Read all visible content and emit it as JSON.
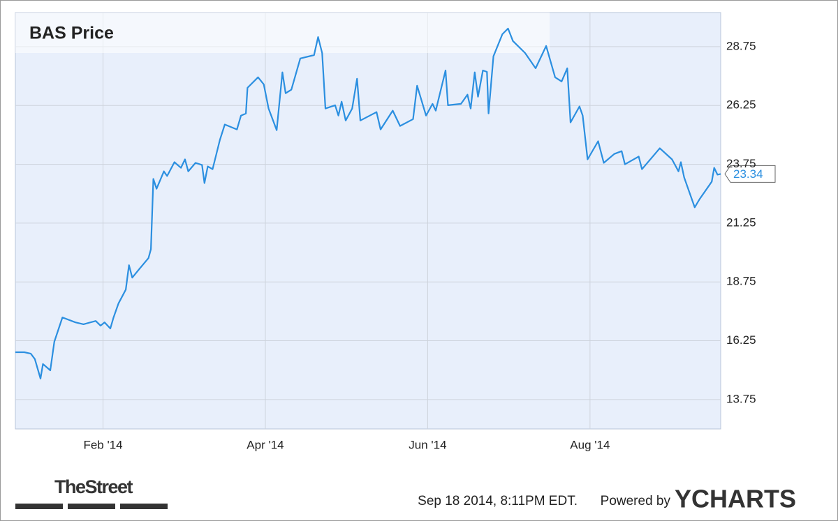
{
  "chart_data": {
    "type": "line",
    "title": "BAS Price",
    "x": [
      -0.08,
      0.03,
      0.11,
      0.16,
      0.23,
      0.26,
      0.35,
      0.4,
      0.5,
      0.66,
      0.76,
      0.91,
      0.97,
      1.02,
      1.09,
      1.13,
      1.19,
      1.28,
      1.32,
      1.36,
      1.45,
      1.56,
      1.59,
      1.62,
      1.66,
      1.75,
      1.79,
      1.88,
      1.96,
      2.01,
      2.05,
      2.14,
      2.22,
      2.25,
      2.29,
      2.35,
      2.44,
      2.5,
      2.65,
      2.7,
      2.76,
      2.78,
      2.91,
      2.98,
      3.04,
      3.14,
      3.21,
      3.25,
      3.32,
      3.43,
      3.6,
      3.65,
      3.7,
      3.74,
      3.86,
      3.9,
      3.94,
      3.99,
      4.07,
      4.13,
      4.17,
      4.37,
      4.42,
      4.57,
      4.66,
      4.82,
      4.87,
      4.98,
      5.06,
      5.1,
      5.22,
      5.25,
      5.41,
      5.49,
      5.53,
      5.58,
      5.62,
      5.68,
      5.73,
      5.75,
      5.81,
      5.92,
      5.99,
      6.05,
      6.2,
      6.33,
      6.46,
      6.57,
      6.65,
      6.72,
      6.76,
      6.87,
      6.91,
      6.97,
      7.1,
      7.17,
      7.3,
      7.39,
      7.43,
      7.6,
      7.64,
      7.86,
      8.01,
      8.09,
      8.12,
      8.16,
      8.29,
      8.35,
      8.5,
      8.53,
      8.57,
      8.61
    ],
    "series": [
      {
        "name": "BAS",
        "color": "#2b8fe0",
        "values": [
          15.76,
          15.76,
          15.7,
          15.47,
          14.64,
          15.26,
          14.99,
          16.21,
          17.24,
          17.03,
          16.95,
          17.09,
          16.89,
          17.03,
          16.77,
          17.24,
          17.83,
          18.42,
          19.46,
          18.93,
          19.31,
          19.76,
          20.14,
          23.13,
          22.71,
          23.45,
          23.25,
          23.84,
          23.6,
          23.96,
          23.45,
          23.81,
          23.72,
          22.95,
          23.66,
          23.54,
          24.79,
          25.44,
          25.23,
          25.82,
          25.91,
          27.0,
          27.45,
          27.15,
          26.12,
          25.2,
          27.66,
          26.77,
          26.92,
          28.25,
          28.39,
          29.16,
          28.48,
          26.12,
          26.26,
          25.82,
          26.41,
          25.61,
          26.12,
          27.39,
          25.61,
          25.97,
          25.23,
          26.03,
          25.38,
          25.67,
          27.09,
          25.82,
          26.32,
          26.03,
          27.74,
          26.26,
          26.32,
          26.71,
          26.12,
          27.66,
          26.62,
          27.74,
          27.68,
          25.91,
          28.34,
          29.28,
          29.52,
          28.99,
          28.48,
          27.83,
          28.78,
          27.45,
          27.27,
          27.83,
          25.53,
          26.21,
          25.82,
          23.96,
          24.73,
          23.81,
          24.19,
          24.31,
          23.75,
          24.08,
          23.54,
          24.43,
          23.96,
          23.45,
          23.84,
          23.19,
          21.92,
          22.27,
          23.01,
          23.6,
          23.31,
          23.34
        ]
      }
    ],
    "xlim": [
      -0.08,
      8.61
    ],
    "xticks": [
      {
        "value": 1,
        "label": "Feb '14"
      },
      {
        "value": 3,
        "label": "Apr '14"
      },
      {
        "value": 5,
        "label": "Jun '14"
      },
      {
        "value": 7,
        "label": "Aug '14"
      }
    ],
    "ylim": [
      12.5,
      30.2
    ],
    "yticks": [
      13.75,
      16.25,
      18.75,
      21.25,
      23.75,
      26.25,
      28.75
    ],
    "grid": true
  },
  "footer": {
    "brand": "TheStreet",
    "timestamp": "Sep 18 2014, 8:11PM EDT.",
    "powered": "Powered by",
    "logo": "YCHARTS"
  }
}
